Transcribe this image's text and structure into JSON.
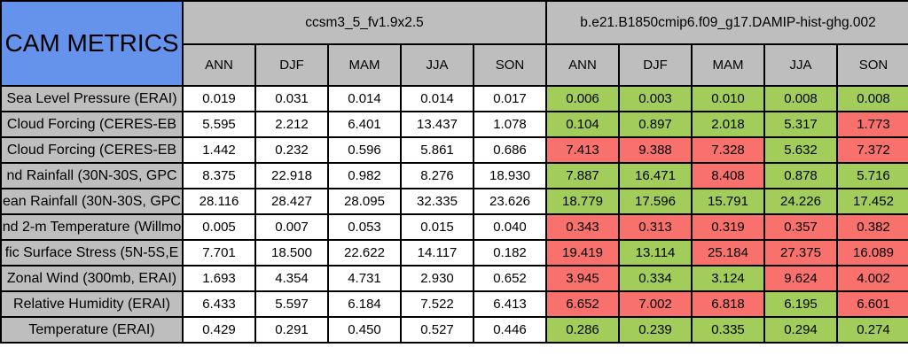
{
  "title": "CAM METRICS",
  "colors": {
    "title_bg": "#6592ea",
    "header_bg": "#bebebe",
    "value_bg": "#ffffff",
    "green_bg": "#a2cd5a",
    "red_bg": "#f9716d",
    "green_border": "#5a7328",
    "red_border": "#a03c37",
    "grid": "#000000",
    "text": "#000000"
  },
  "chart_data": {
    "type": "table",
    "title": "CAM METRICS",
    "column_groups": [
      {
        "name": "ccsm3_5_fv1.9x2.5",
        "seasons": [
          "ANN",
          "DJF",
          "MAM",
          "JJA",
          "SON"
        ]
      },
      {
        "name": "b.e21.B1850cmip6.f09_g17.DAMIP-hist-ghg.002",
        "seasons": [
          "ANN",
          "DJF",
          "MAM",
          "JJA",
          "SON"
        ]
      }
    ],
    "cell_color_legend": {
      "green": "#a2cd5a",
      "red": "#f9716d",
      "plain": "#ffffff"
    },
    "rows": [
      {
        "label": "Sea Level Pressure (ERAI)",
        "group1_values": [
          "0.019",
          "0.031",
          "0.014",
          "0.014",
          "0.017"
        ],
        "group2_values": [
          "0.006",
          "0.003",
          "0.010",
          "0.008",
          "0.008"
        ],
        "group2_colors": [
          "green",
          "green",
          "green",
          "green",
          "green"
        ]
      },
      {
        "label": "Cloud Forcing (CERES-EB",
        "group1_values": [
          "5.595",
          "2.212",
          "6.401",
          "13.437",
          "1.078"
        ],
        "group2_values": [
          "0.104",
          "0.897",
          "2.018",
          "5.317",
          "1.773"
        ],
        "group2_colors": [
          "green",
          "green",
          "green",
          "green",
          "red"
        ]
      },
      {
        "label": "Cloud Forcing (CERES-EB",
        "group1_values": [
          "1.442",
          "0.232",
          "0.596",
          "5.861",
          "0.686"
        ],
        "group2_values": [
          "7.413",
          "9.388",
          "7.328",
          "5.632",
          "7.372"
        ],
        "group2_colors": [
          "red",
          "red",
          "red",
          "green",
          "red"
        ]
      },
      {
        "label": "nd Rainfall (30N-30S, GPC",
        "group1_values": [
          "8.375",
          "22.918",
          "0.982",
          "8.276",
          "18.930"
        ],
        "group2_values": [
          "7.887",
          "16.471",
          "8.408",
          "0.878",
          "5.716"
        ],
        "group2_colors": [
          "green",
          "green",
          "red",
          "green",
          "green"
        ]
      },
      {
        "label": "ean Rainfall (30N-30S, GPC",
        "group1_values": [
          "28.116",
          "28.427",
          "28.095",
          "32.335",
          "23.626"
        ],
        "group2_values": [
          "18.779",
          "17.596",
          "15.791",
          "24.226",
          "17.452"
        ],
        "group2_colors": [
          "green",
          "green",
          "green",
          "green",
          "green"
        ]
      },
      {
        "label": "nd 2-m Temperature (Willmo",
        "group1_values": [
          "0.005",
          "0.007",
          "0.053",
          "0.015",
          "0.040"
        ],
        "group2_values": [
          "0.343",
          "0.313",
          "0.319",
          "0.357",
          "0.382"
        ],
        "group2_colors": [
          "red",
          "red",
          "red",
          "red",
          "red"
        ]
      },
      {
        "label": "fic Surface Stress (5N-5S,E",
        "group1_values": [
          "7.701",
          "18.500",
          "22.622",
          "14.117",
          "0.182"
        ],
        "group2_values": [
          "19.419",
          "13.114",
          "25.184",
          "27.375",
          "16.089"
        ],
        "group2_colors": [
          "red",
          "green",
          "red",
          "red",
          "red"
        ]
      },
      {
        "label": "Zonal Wind (300mb, ERAI)",
        "group1_values": [
          "1.693",
          "4.354",
          "4.731",
          "2.930",
          "0.652"
        ],
        "group2_values": [
          "3.945",
          "0.334",
          "3.124",
          "9.624",
          "4.002"
        ],
        "group2_colors": [
          "red",
          "green",
          "green",
          "red",
          "red"
        ]
      },
      {
        "label": "Relative Humidity (ERAI)",
        "group1_values": [
          "6.433",
          "5.597",
          "6.184",
          "7.522",
          "6.413"
        ],
        "group2_values": [
          "6.652",
          "7.002",
          "6.818",
          "6.195",
          "6.601"
        ],
        "group2_colors": [
          "red",
          "red",
          "red",
          "green",
          "red"
        ]
      },
      {
        "label": "Temperature (ERAI)",
        "group1_values": [
          "0.429",
          "0.291",
          "0.450",
          "0.527",
          "0.446"
        ],
        "group2_values": [
          "0.286",
          "0.239",
          "0.335",
          "0.294",
          "0.274"
        ],
        "group2_colors": [
          "green",
          "green",
          "green",
          "green",
          "green"
        ]
      }
    ]
  }
}
